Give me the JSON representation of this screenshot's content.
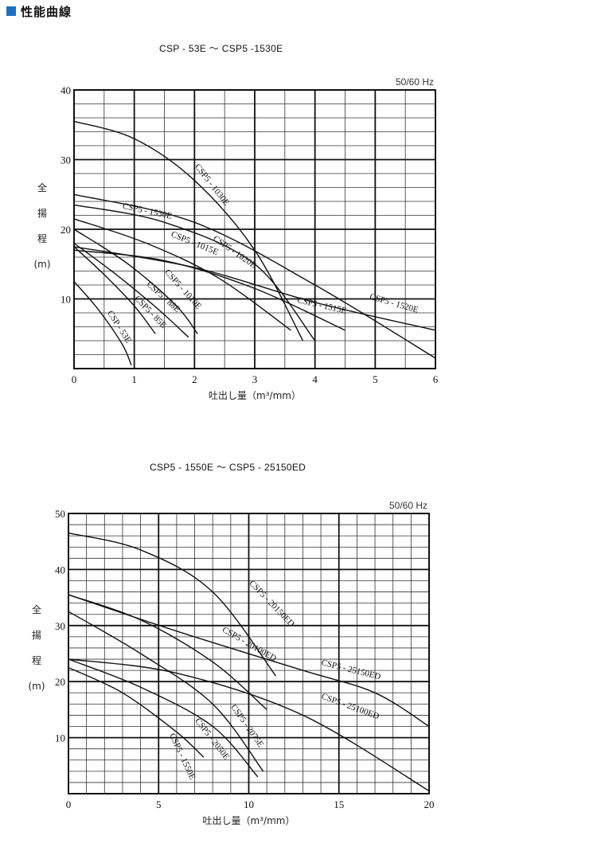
{
  "header": {
    "title": "性能曲線"
  },
  "chart_data": [
    {
      "type": "line",
      "title": "CSP - 53E ～ CSP5 -1530E",
      "frequency": "50/60 Hz",
      "ylabel": [
        "全",
        "揚",
        "程",
        "(m)"
      ],
      "xlabel": "吐出し量（m³/mm）",
      "xlim": [
        0,
        6
      ],
      "ylim": [
        0,
        40
      ],
      "xticks": [
        0,
        1,
        2,
        3,
        4,
        5,
        6
      ],
      "yticks": [
        10,
        20,
        30,
        40
      ],
      "x_minor": 0.5,
      "y_minor": 2,
      "grid": true,
      "series": [
        {
          "name": "CSP - 53E",
          "points": [
            [
              0,
              12.5
            ],
            [
              0.4,
              8.5
            ],
            [
              0.8,
              3.5
            ],
            [
              0.95,
              0.5
            ]
          ],
          "label_at": [
            0.55,
            8.0
          ],
          "label_angle": 57
        },
        {
          "name": "CSP5 - 85E",
          "points": [
            [
              0,
              17.5
            ],
            [
              0.5,
              13.5
            ],
            [
              1.0,
              9.0
            ],
            [
              1.35,
              5.0
            ]
          ],
          "label_at": [
            1.0,
            10.0
          ],
          "label_angle": 46
        },
        {
          "name": "CSP5 - 88E",
          "points": [
            [
              0,
              18.0
            ],
            [
              0.7,
              13.5
            ],
            [
              1.4,
              8.5
            ],
            [
              1.9,
              4.5
            ]
          ],
          "label_at": [
            1.2,
            12.0
          ],
          "label_angle": 42
        },
        {
          "name": "CSP5 - 1010E",
          "points": [
            [
              0,
              20.0
            ],
            [
              0.9,
              15.0
            ],
            [
              1.7,
              9.0
            ],
            [
              2.05,
              5.0
            ]
          ],
          "label_at": [
            1.5,
            13.8
          ],
          "label_angle": 48
        },
        {
          "name": "CSP5 - 1015E",
          "points": [
            [
              0,
              21.5
            ],
            [
              1.2,
              18.0
            ],
            [
              2.4,
              13.0
            ],
            [
              3.6,
              5.5
            ]
          ],
          "label_at": [
            1.6,
            19.0
          ],
          "label_angle": 22
        },
        {
          "name": "CSP5 - 1020E",
          "points": [
            [
              0,
              23.5
            ],
            [
              1.5,
              21.0
            ],
            [
              3.0,
              15.0
            ],
            [
              4.0,
              4.0
            ]
          ],
          "label_at": [
            2.3,
            18.5
          ],
          "label_angle": 35
        },
        {
          "name": "CSP5 - 1030E",
          "points": [
            [
              0,
              35.5
            ],
            [
              1.0,
              33.0
            ],
            [
              2.0,
              27.0
            ],
            [
              3.0,
              17.0
            ],
            [
              3.8,
              4.0
            ]
          ],
          "label_at": [
            2.0,
            29.0
          ],
          "label_angle": 52
        },
        {
          "name": "CSP5 - 1515E",
          "points": [
            [
              0,
              17.0
            ],
            [
              1.5,
              15.5
            ],
            [
              3.0,
              11.5
            ],
            [
              4.5,
              5.5
            ]
          ],
          "label_at": [
            3.7,
            9.5
          ],
          "label_angle": 13
        },
        {
          "name": "CSP5 - 1520E",
          "points": [
            [
              0,
              17.5
            ],
            [
              2.0,
              14.5
            ],
            [
              4.0,
              9.5
            ],
            [
              6.0,
              5.5
            ]
          ],
          "label_at": [
            4.9,
            10.0
          ],
          "label_angle": 16
        },
        {
          "name": "CSP5 - 1530E",
          "points": [
            [
              0,
              25.0
            ],
            [
              2.0,
              21.0
            ],
            [
              4.0,
              12.0
            ],
            [
              6.0,
              1.5
            ]
          ],
          "label_at": [
            0.8,
            23.0
          ],
          "label_angle": 12
        }
      ]
    },
    {
      "type": "line",
      "title": "CSP5 - 1550E ～ CSP5 - 25150ED",
      "frequency": "50/60 Hz",
      "ylabel": [
        "全",
        "揚",
        "程",
        "(m)"
      ],
      "xlabel": "吐出し量（m³/mm）",
      "xlim": [
        0,
        20
      ],
      "ylim": [
        0,
        50
      ],
      "xticks": [
        0,
        5,
        10,
        15,
        20
      ],
      "yticks": [
        10,
        20,
        30,
        40,
        50
      ],
      "x_minor": 1,
      "y_minor": 2,
      "grid": true,
      "series": [
        {
          "name": "CSP5 - 1550E",
          "points": [
            [
              0,
              22.5
            ],
            [
              3.0,
              18.0
            ],
            [
              6.0,
              11.0
            ],
            [
              7.5,
              6.5
            ]
          ],
          "label_at": [
            5.6,
            10.5
          ],
          "label_angle": 65
        },
        {
          "name": "CSP5 - 2050E",
          "points": [
            [
              0,
              24.0
            ],
            [
              4.0,
              19.0
            ],
            [
              8.0,
              12.0
            ],
            [
              10.5,
              3.0
            ]
          ],
          "label_at": [
            7.0,
            13.0
          ],
          "label_angle": 52
        },
        {
          "name": "CSP5 - 2075E",
          "points": [
            [
              0,
              32.5
            ],
            [
              4.0,
              25.0
            ],
            [
              8.0,
              16.0
            ],
            [
              10.8,
              4.0
            ]
          ],
          "label_at": [
            9.0,
            15.5
          ],
          "label_angle": 55
        },
        {
          "name": "CSP5 - 20100ED",
          "points": [
            [
              0,
              35.5
            ],
            [
              4.0,
              31.0
            ],
            [
              8.0,
              23.5
            ],
            [
              11.0,
              15.0
            ]
          ],
          "label_at": [
            8.5,
            29.0
          ],
          "label_angle": 30
        },
        {
          "name": "CSP5 - 20150ED",
          "points": [
            [
              0,
              46.5
            ],
            [
              4.0,
              43.5
            ],
            [
              8.0,
              36.0
            ],
            [
              11.5,
              21.0
            ]
          ],
          "label_at": [
            10.0,
            37.5
          ],
          "label_angle": 46
        },
        {
          "name": "CSP5 - 25100ED",
          "points": [
            [
              0,
              24.0
            ],
            [
              6.0,
              21.5
            ],
            [
              13.0,
              14.0
            ],
            [
              20.0,
              0.5
            ]
          ],
          "label_at": [
            14.0,
            17.0
          ],
          "label_angle": 20
        },
        {
          "name": "CSP5 - 25150ED",
          "points": [
            [
              0,
              35.5
            ],
            [
              6.0,
              29.0
            ],
            [
              13.0,
              22.0
            ],
            [
              17.0,
              18.0
            ],
            [
              20.0,
              12.0
            ]
          ],
          "label_at": [
            14.0,
            23.0
          ],
          "label_angle": 14
        }
      ]
    }
  ]
}
